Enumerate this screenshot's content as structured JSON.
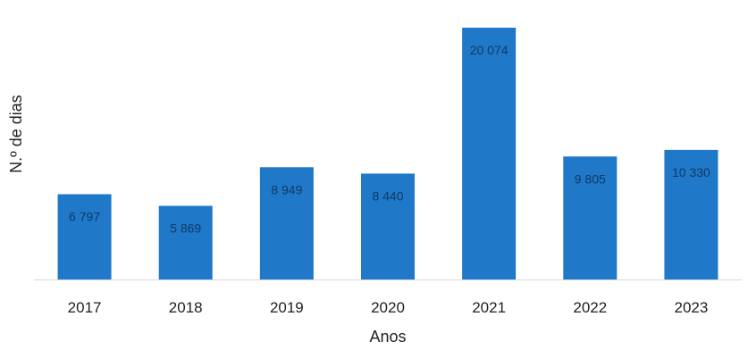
{
  "chart_data": {
    "type": "bar",
    "title": "",
    "xlabel": "Anos",
    "ylabel": "N.º de dias",
    "categories": [
      "2017",
      "2018",
      "2019",
      "2020",
      "2021",
      "2022",
      "2023"
    ],
    "values": [
      6797,
      5869,
      8949,
      8440,
      20074,
      9805,
      10330
    ],
    "value_labels": [
      "6 797",
      "5 869",
      "8 949",
      "8 440",
      "20 074",
      "9 805",
      "10 330"
    ],
    "ylim": [
      0,
      21000
    ],
    "grid": false,
    "legend": "none",
    "colors": {
      "bar": "#1f78c8",
      "bar_label": "#103a66",
      "axis": "#d9d9d9",
      "text": "#222222"
    }
  }
}
